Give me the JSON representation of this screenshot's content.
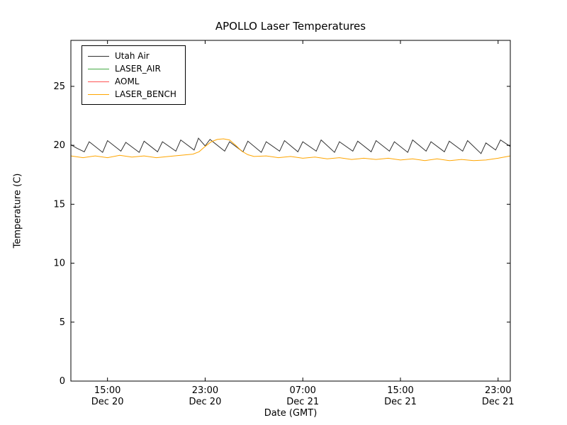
{
  "title": "APOLLO Laser Temperatures",
  "chart_data": {
    "type": "line",
    "title": "APOLLO Laser Temperatures",
    "xlabel": "Date (GMT)",
    "ylabel": "Temperature (C)",
    "x_unit": "hours after Dec 20 12:00 GMT",
    "xlim": [
      0,
      36
    ],
    "ylim": [
      0,
      28.9
    ],
    "yticks": [
      0,
      5,
      10,
      15,
      20,
      25
    ],
    "xticks": [
      {
        "t": 3,
        "time": "15:00",
        "date": "Dec 20"
      },
      {
        "t": 11,
        "time": "23:00",
        "date": "Dec 20"
      },
      {
        "t": 19,
        "time": "07:00",
        "date": "Dec 21"
      },
      {
        "t": 27,
        "time": "15:00",
        "date": "Dec 21"
      },
      {
        "t": 35,
        "time": "23:00",
        "date": "Dec 21"
      }
    ],
    "grid": false,
    "legend_position": "upper left",
    "series": [
      {
        "name": "Utah Air",
        "color": "#303030",
        "points": [
          [
            0,
            20.05
          ],
          [
            0.5,
            19.75
          ],
          [
            1.1,
            19.45
          ],
          [
            1.5,
            20.3
          ],
          [
            2.6,
            19.4
          ],
          [
            3.0,
            20.4
          ],
          [
            4.1,
            19.5
          ],
          [
            4.5,
            20.25
          ],
          [
            5.6,
            19.4
          ],
          [
            6.0,
            20.35
          ],
          [
            7.1,
            19.45
          ],
          [
            7.5,
            20.3
          ],
          [
            8.6,
            19.5
          ],
          [
            9.0,
            20.45
          ],
          [
            10.1,
            19.6
          ],
          [
            10.45,
            20.6
          ],
          [
            11.0,
            19.95
          ],
          [
            11.4,
            20.5
          ],
          [
            12.6,
            19.5
          ],
          [
            13.0,
            20.3
          ],
          [
            14.1,
            19.45
          ],
          [
            14.5,
            20.35
          ],
          [
            15.6,
            19.4
          ],
          [
            16.0,
            20.3
          ],
          [
            17.1,
            19.5
          ],
          [
            17.5,
            20.4
          ],
          [
            18.6,
            19.45
          ],
          [
            19.0,
            20.3
          ],
          [
            20.1,
            19.5
          ],
          [
            20.5,
            20.45
          ],
          [
            21.6,
            19.4
          ],
          [
            22.0,
            20.3
          ],
          [
            23.1,
            19.5
          ],
          [
            23.5,
            20.35
          ],
          [
            24.6,
            19.45
          ],
          [
            25.0,
            20.4
          ],
          [
            26.1,
            19.5
          ],
          [
            26.5,
            20.3
          ],
          [
            27.6,
            19.4
          ],
          [
            28.0,
            20.45
          ],
          [
            29.1,
            19.5
          ],
          [
            29.5,
            20.3
          ],
          [
            30.6,
            19.45
          ],
          [
            31.0,
            20.35
          ],
          [
            32.1,
            19.5
          ],
          [
            32.5,
            20.4
          ],
          [
            33.6,
            19.3
          ],
          [
            34.0,
            20.2
          ],
          [
            34.8,
            19.6
          ],
          [
            35.2,
            20.45
          ],
          [
            36,
            19.9
          ]
        ]
      },
      {
        "name": "LASER_AIR",
        "color": "#44aa44",
        "points": []
      },
      {
        "name": "AOML",
        "color": "#ff5555",
        "points": []
      },
      {
        "name": "LASER_BENCH",
        "color": "#ffa500",
        "points": [
          [
            0,
            19.1
          ],
          [
            1,
            18.95
          ],
          [
            2,
            19.1
          ],
          [
            3,
            18.95
          ],
          [
            4,
            19.15
          ],
          [
            5,
            19.0
          ],
          [
            6,
            19.1
          ],
          [
            7,
            18.95
          ],
          [
            8,
            19.05
          ],
          [
            9,
            19.15
          ],
          [
            10,
            19.25
          ],
          [
            10.5,
            19.45
          ],
          [
            11,
            19.9
          ],
          [
            11.5,
            20.3
          ],
          [
            12,
            20.5
          ],
          [
            12.5,
            20.55
          ],
          [
            13,
            20.45
          ],
          [
            13.5,
            20.0
          ],
          [
            14,
            19.5
          ],
          [
            14.5,
            19.2
          ],
          [
            15,
            19.05
          ],
          [
            16,
            19.1
          ],
          [
            17,
            18.95
          ],
          [
            18,
            19.05
          ],
          [
            19,
            18.9
          ],
          [
            20,
            19.0
          ],
          [
            21,
            18.85
          ],
          [
            22,
            18.95
          ],
          [
            23,
            18.8
          ],
          [
            24,
            18.9
          ],
          [
            25,
            18.8
          ],
          [
            26,
            18.9
          ],
          [
            27,
            18.75
          ],
          [
            28,
            18.85
          ],
          [
            29,
            18.7
          ],
          [
            30,
            18.85
          ],
          [
            31,
            18.7
          ],
          [
            32,
            18.8
          ],
          [
            33,
            18.7
          ],
          [
            34,
            18.75
          ],
          [
            35,
            18.9
          ],
          [
            36,
            19.1
          ]
        ]
      }
    ]
  }
}
